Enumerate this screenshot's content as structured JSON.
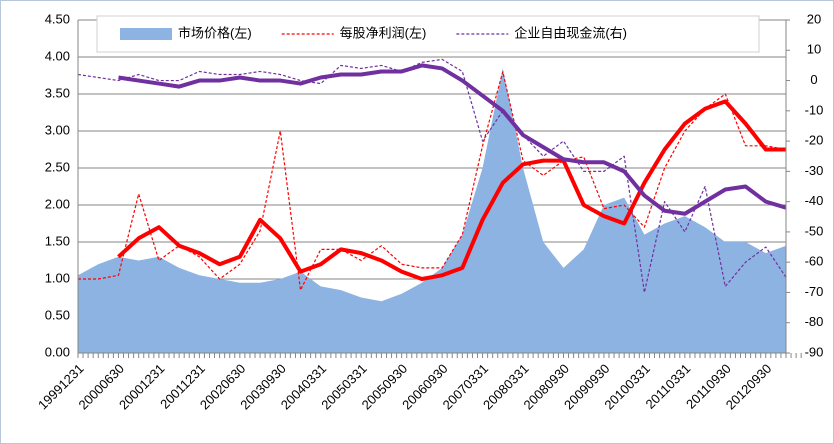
{
  "chart_data": {
    "type": "combo",
    "categories": [
      "19991231",
      null,
      "20000630",
      null,
      "20001231",
      null,
      "20011231",
      null,
      "20020630",
      null,
      "20030930",
      null,
      "20040331",
      null,
      "20050331",
      null,
      "20050930",
      null,
      "20060930",
      null,
      "20070331",
      null,
      "20080331",
      null,
      "20080930",
      null,
      "20090930",
      null,
      "20100331",
      null,
      "20110331",
      null,
      "20110930",
      null,
      "20120930",
      null
    ],
    "series": [
      {
        "name": "市场价格(左)",
        "kind": "area",
        "color": "#8db3e2",
        "axis": "y",
        "values": [
          1.05,
          1.2,
          1.3,
          1.25,
          1.3,
          1.15,
          1.05,
          1.0,
          0.95,
          0.95,
          1.0,
          1.1,
          0.9,
          0.85,
          0.75,
          0.7,
          0.8,
          0.95,
          1.15,
          1.6,
          2.5,
          3.85,
          2.5,
          1.5,
          1.15,
          1.4,
          2.0,
          2.1,
          1.6,
          1.75,
          1.85,
          1.7,
          1.5,
          1.5,
          1.35,
          1.45
        ]
      },
      {
        "name": "每股净利润(左)",
        "kind": "dashed",
        "color": "#ff0000",
        "axis": "y",
        "values": [
          1.0,
          1.0,
          1.05,
          2.15,
          1.25,
          1.45,
          1.3,
          1.0,
          1.2,
          1.65,
          3.0,
          0.85,
          1.4,
          1.4,
          1.25,
          1.45,
          1.2,
          1.15,
          1.15,
          1.6,
          2.8,
          3.8,
          2.6,
          2.4,
          2.6,
          2.65,
          1.95,
          2.0,
          1.7,
          2.5,
          3.0,
          3.3,
          3.5,
          2.8,
          2.8,
          2.75
        ]
      },
      {
        "name": "企业自由现金流(右)",
        "kind": "dashed",
        "color": "#7030a0",
        "axis": "y2",
        "values": [
          2,
          1,
          0,
          2,
          0,
          0,
          3,
          2,
          2,
          3,
          2,
          0,
          -1,
          5,
          4,
          5,
          3,
          6,
          7,
          3,
          -20,
          -10,
          -18,
          -25,
          -20,
          -30,
          -30,
          -25,
          -70,
          -40,
          -50,
          -35,
          -68,
          -60,
          -55,
          -65
        ]
      },
      {
        "kind": "thick",
        "color": "#ff0000",
        "axis": "y",
        "values": [
          null,
          null,
          1.3,
          1.55,
          1.7,
          1.45,
          1.35,
          1.2,
          1.3,
          1.8,
          1.55,
          1.1,
          1.2,
          1.4,
          1.35,
          1.25,
          1.1,
          1.0,
          1.05,
          1.15,
          1.8,
          2.3,
          2.55,
          2.6,
          2.6,
          2.0,
          1.85,
          1.75,
          2.3,
          2.75,
          3.1,
          3.3,
          3.4,
          3.1,
          2.75,
          2.75
        ]
      },
      {
        "kind": "thick",
        "color": "#7030a0",
        "axis": "y2",
        "values": [
          null,
          null,
          1,
          0,
          -1,
          -2,
          0,
          0,
          1,
          0,
          0,
          -1,
          1,
          2,
          2,
          3,
          3,
          5,
          4,
          0,
          -5,
          -10,
          -18,
          -22,
          -26,
          -27,
          -27,
          -30,
          -38,
          -43,
          -44,
          -40,
          -36,
          -35,
          -40,
          -42
        ]
      }
    ],
    "ylim": [
      0,
      4.5
    ],
    "yticks": [
      {
        "value": 0,
        "label": "0.00"
      },
      {
        "value": 0.5,
        "label": "0.50"
      },
      {
        "value": 1,
        "label": "1.00"
      },
      {
        "value": 1.5,
        "label": "1.50"
      },
      {
        "value": 2,
        "label": "2.00"
      },
      {
        "value": 2.5,
        "label": "2.50"
      },
      {
        "value": 3,
        "label": "3.00"
      },
      {
        "value": 3.5,
        "label": "3.50"
      },
      {
        "value": 4,
        "label": "4.00"
      },
      {
        "value": 4.5,
        "label": "4.50"
      }
    ],
    "y2lim": [
      -90,
      20
    ],
    "y2ticks": [
      -90,
      -80,
      -70,
      -60,
      -50,
      -40,
      -30,
      -20,
      -10,
      0,
      10,
      20
    ],
    "grid": true
  }
}
